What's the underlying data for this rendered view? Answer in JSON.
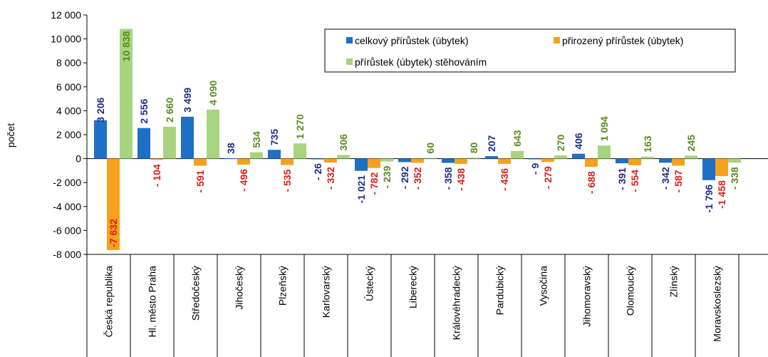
{
  "chart_data": {
    "type": "bar",
    "ylabel": "počet",
    "ylim": [
      -8000,
      12000
    ],
    "yticks": [
      12000,
      10000,
      8000,
      6000,
      4000,
      2000,
      0,
      -2000,
      -4000,
      -6000,
      -8000
    ],
    "ytick_labels": [
      "12 000",
      "10 000",
      "8 000",
      "6 000",
      "4 000",
      "2 000",
      "0",
      "-2 000",
      "-4 000",
      "-6 000",
      "-8 000"
    ],
    "grid": false,
    "legend_position": "top-right",
    "categories": [
      "Česká republika",
      "Hl. město Praha",
      "Středočeský",
      "Jihočeský",
      "Plzeňský",
      "Karlovarský",
      "Ústecký",
      "Liberecký",
      "Královéhradecký",
      "Pardubický",
      "Vysočina",
      "Jihomoravský",
      "Olomoucký",
      "Zlínský",
      "Moravskoslezský"
    ],
    "series": [
      {
        "name": "celkový přírůstek (úbytek)",
        "color": "#1F6FC5",
        "label_color": "#1F2D8A",
        "values": [
          3206,
          2556,
          3499,
          38,
          735,
          -26,
          -1021,
          -292,
          -358,
          207,
          -9,
          406,
          -391,
          -342,
          -1796
        ],
        "labels": [
          "3 206",
          "2 556",
          "3 499",
          "38",
          "735",
          "- 26",
          "-1 021",
          "- 292",
          "- 358",
          "207",
          "- 9",
          "406",
          "- 391",
          "- 342",
          "-1 796"
        ]
      },
      {
        "name": "přirozený přírůstek (úbytek)",
        "color": "#F5A11E",
        "label_color": "#D91E18",
        "values": [
          -7632,
          -104,
          -591,
          -496,
          -535,
          -332,
          -782,
          -352,
          -438,
          -436,
          -279,
          -688,
          -554,
          -587,
          -1458
        ],
        "labels": [
          "-7 632",
          "- 104",
          "- 591",
          "- 496",
          "- 535",
          "- 332",
          "- 782",
          "- 352",
          "- 438",
          "- 436",
          "- 279",
          "- 688",
          "- 554",
          "- 587",
          "-1 458"
        ]
      },
      {
        "name": "přírůstek (úbytek) stěhováním",
        "color": "#A9D47F",
        "label_color": "#5A8A1E",
        "values": [
          10838,
          2660,
          4090,
          534,
          1270,
          306,
          -239,
          60,
          80,
          643,
          270,
          1094,
          163,
          245,
          -338
        ],
        "labels": [
          "10 838",
          "2 660",
          "4 090",
          "534",
          "1 270",
          "306",
          "- 239",
          "60",
          "80",
          "643",
          "270",
          "1 094",
          "163",
          "245",
          "- 338"
        ]
      }
    ]
  }
}
